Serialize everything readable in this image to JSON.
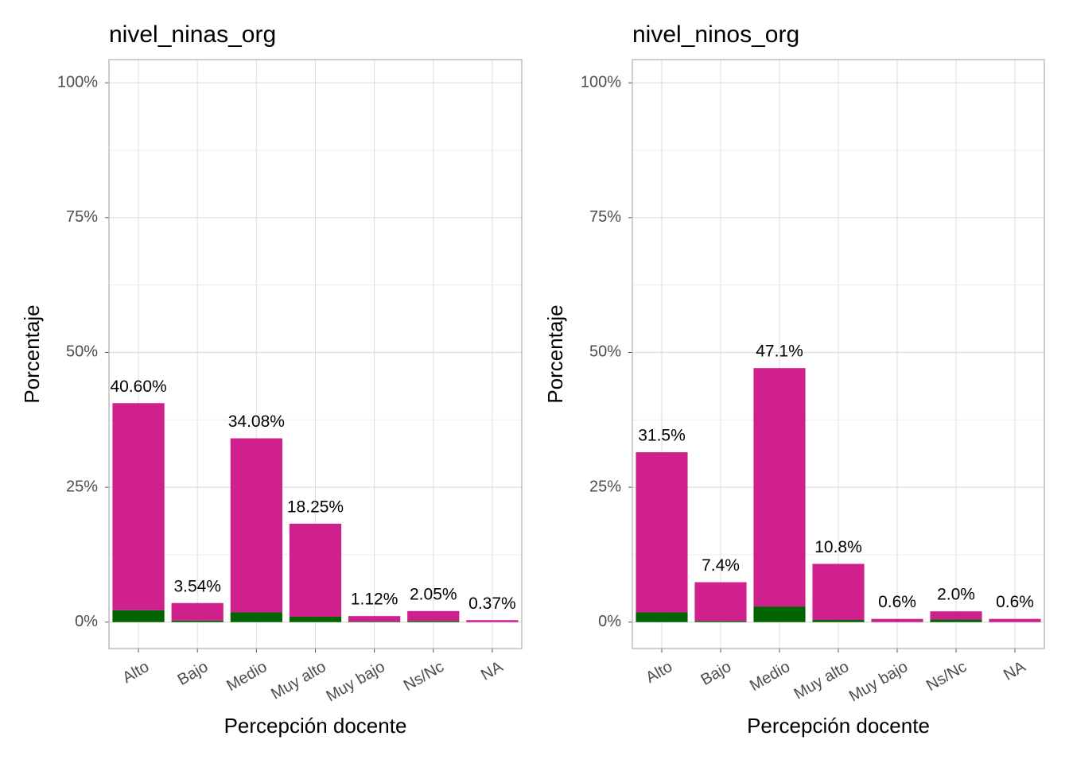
{
  "chart_data": [
    {
      "type": "stacked-bar",
      "title": "nivel_ninas_org",
      "x_label": "Percepción docente",
      "y_label": "Porcentaje",
      "categories": [
        "Alto",
        "Bajo",
        "Medio",
        "Muy alto",
        "Muy bajo",
        "Ns/Nc",
        "NA"
      ],
      "series": [
        {
          "color": "#006400",
          "values": [
            2.2,
            0.3,
            1.8,
            1.0,
            0.1,
            0.2,
            0
          ]
        },
        {
          "color": "#d0208e",
          "values": [
            38.4,
            3.24,
            32.28,
            17.25,
            1.02,
            1.85,
            0.37
          ]
        }
      ],
      "totals": [
        40.6,
        3.54,
        34.08,
        18.25,
        1.12,
        2.05,
        0.37
      ],
      "total_labels": [
        "40.60%",
        "3.54%",
        "34.08%",
        "18.25%",
        "1.12%",
        "2.05%",
        "0.37%"
      ],
      "ylim": [
        -4.9,
        104.3
      ],
      "yticks": [
        {
          "value": 0,
          "label": "0%"
        },
        {
          "value": 25,
          "label": "25%"
        },
        {
          "value": 50,
          "label": "50%"
        },
        {
          "value": 75,
          "label": "75%"
        },
        {
          "value": 100,
          "label": "100%"
        }
      ],
      "grid": true
    },
    {
      "type": "stacked-bar",
      "title": "nivel_ninos_org",
      "x_label": "Percepción docente",
      "y_label": "Porcentaje",
      "categories": [
        "Alto",
        "Bajo",
        "Medio",
        "Muy alto",
        "Muy bajo",
        "Ns/Nc",
        "NA"
      ],
      "series": [
        {
          "color": "#006400",
          "values": [
            1.8,
            0.2,
            2.9,
            0.4,
            0,
            0.5,
            0
          ]
        },
        {
          "color": "#d0208e",
          "values": [
            29.7,
            7.2,
            44.2,
            10.4,
            0.6,
            1.5,
            0.6
          ]
        }
      ],
      "totals": [
        31.5,
        7.4,
        47.1,
        10.8,
        0.6,
        2.0,
        0.6
      ],
      "total_labels": [
        "31.5%",
        "7.4%",
        "47.1%",
        "10.8%",
        "0.6%",
        "2.0%",
        "0.6%"
      ],
      "ylim": [
        -4.9,
        104.3
      ],
      "yticks": [
        {
          "value": 0,
          "label": "0%"
        },
        {
          "value": 25,
          "label": "25%"
        },
        {
          "value": 50,
          "label": "50%"
        },
        {
          "value": 75,
          "label": "75%"
        },
        {
          "value": 100,
          "label": "100%"
        }
      ],
      "grid": true
    }
  ]
}
